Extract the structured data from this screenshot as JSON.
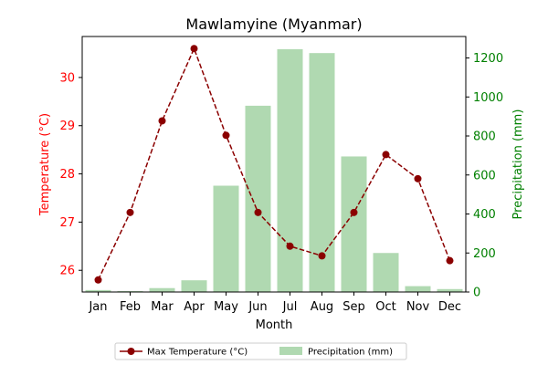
{
  "colors": {
    "temperature": "#8b0000",
    "temperature_axis": "#ff0000",
    "precipitation_bar": "#b0d9b1",
    "precipitation_axis": "#008000",
    "axis": "#000000",
    "legend_border": "#cccccc"
  },
  "chart_data": {
    "type": "bar",
    "title": "Mawlamyine (Myanmar)",
    "xlabel": "Month",
    "categories": [
      "Jan",
      "Feb",
      "Mar",
      "Apr",
      "May",
      "Jun",
      "Jul",
      "Aug",
      "Sep",
      "Oct",
      "Nov",
      "Dec"
    ],
    "series": [
      {
        "name": "Max Temperature (°C)",
        "type": "line",
        "axis": "left",
        "line_style": "dashed",
        "marker": "circle",
        "values": [
          25.8,
          27.2,
          29.1,
          30.6,
          28.8,
          27.2,
          26.5,
          26.3,
          27.2,
          28.4,
          27.9,
          26.2
        ]
      },
      {
        "name": "Precipitation (mm)",
        "type": "bar",
        "axis": "right",
        "values": [
          10,
          5,
          20,
          60,
          545,
          955,
          1245,
          1225,
          695,
          200,
          30,
          15
        ]
      }
    ],
    "y_left": {
      "label": "Temperature (°C)",
      "ylim": [
        25.55,
        30.85
      ],
      "ticks": [
        26,
        27,
        28,
        29,
        30
      ]
    },
    "y_right": {
      "label": "Precipitation (mm)",
      "ylim": [
        0,
        1310
      ],
      "ticks": [
        0,
        200,
        400,
        600,
        800,
        1000,
        1200
      ]
    },
    "grid": false,
    "legend_placement": "bottom-center"
  }
}
